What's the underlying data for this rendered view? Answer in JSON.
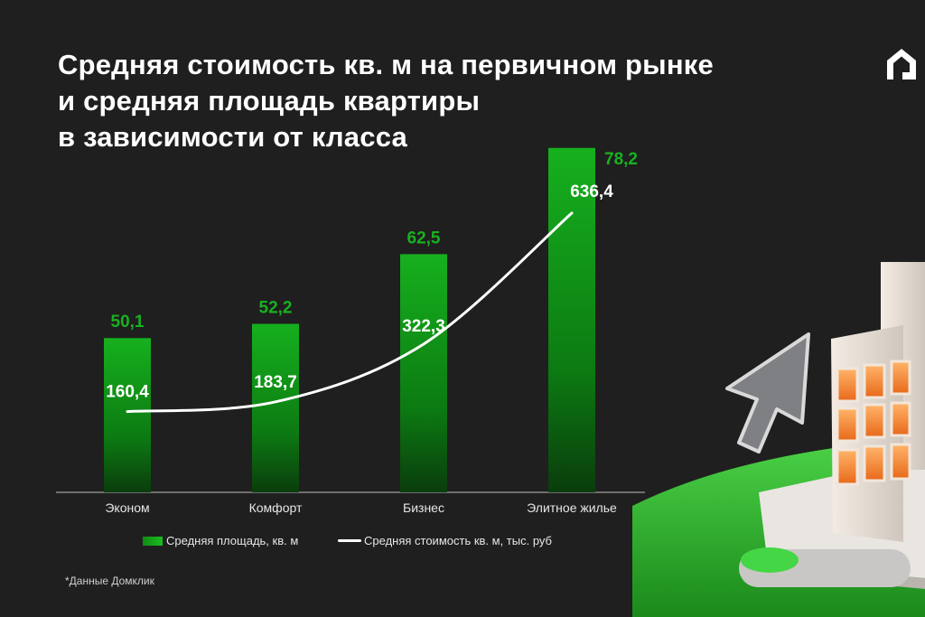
{
  "title_lines": [
    "Средняя стоимость кв. м на первичном рынке",
    "и средняя площадь квартиры",
    "в зависимости от класса"
  ],
  "colors": {
    "background": "#1f1f1f",
    "bar_green": "#17b11f",
    "line": "#ffffff"
  },
  "legend": {
    "bar_label": "Средняя площадь, кв. м",
    "line_label": "Средняя стоимость кв. м, тыс. руб"
  },
  "footnote": "*Данные Домклик",
  "chart_data": {
    "type": "bar",
    "categories": [
      "Эконом",
      "Комфорт",
      "Бизнес",
      "Элитное жилье"
    ],
    "series": [
      {
        "name": "Средняя площадь, кв. м",
        "type": "bar",
        "values": [
          50.1,
          52.2,
          62.5,
          78.2
        ],
        "labels": [
          "50,1",
          "52,2",
          "62,5",
          "78,2"
        ]
      },
      {
        "name": "Средняя стоимость кв. м, тыс. руб",
        "type": "line",
        "values": [
          160.4,
          183.7,
          322.3,
          636.4
        ],
        "labels": [
          "160,4",
          "183,7",
          "322,3",
          "636,4"
        ]
      }
    ],
    "grid": false,
    "legend_position": "bottom"
  }
}
